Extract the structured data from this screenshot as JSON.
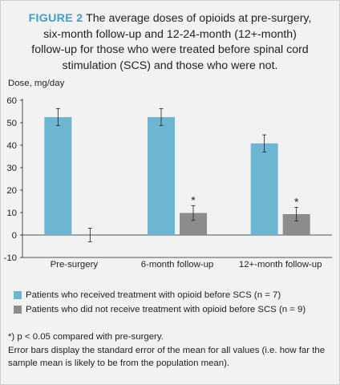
{
  "figure": {
    "label": "FIGURE 2",
    "caption_lines": [
      " The average doses of opioids at pre-surgery,",
      "six-month follow-up and 12-24-month (12+-month)",
      "follow-up for those who were treated before spinal cord",
      "stimulation (SCS) and those who were not."
    ]
  },
  "colors": {
    "accent": "#3f9fc5",
    "series_1": "#6cb6d2",
    "series_2": "#8c8c8c"
  },
  "chart_data": {
    "type": "bar",
    "ylabel": "Dose, mg/day",
    "xlabel": "",
    "ylim": [
      -10,
      60
    ],
    "yticks": [
      -10,
      0,
      10,
      20,
      30,
      40,
      50,
      60
    ],
    "categories": [
      "Pre-surgery",
      "6-month follow-up",
      "12+-month follow-up"
    ],
    "series": [
      {
        "name": "Patients who received treatment with opioid before SCS (n = 7)",
        "values": [
          52.5,
          52.5,
          40.8
        ],
        "error": [
          3.8,
          3.8,
          3.8
        ],
        "markers": [
          "",
          "",
          ""
        ]
      },
      {
        "name": "Patients who did not receive treatment with opioid before SCS (n = 9)",
        "values": [
          0,
          9.8,
          9.3
        ],
        "error": [
          3.0,
          3.3,
          3.0
        ],
        "markers": [
          "",
          "*",
          "*"
        ]
      }
    ],
    "legend_position": "bottom",
    "grid": false
  },
  "notes": [
    "*) p < 0.05 compared with pre-surgery.",
    "Error bars display the standard error of the mean for all values (i.e. how far the sample mean is likely to be from the population mean)."
  ]
}
